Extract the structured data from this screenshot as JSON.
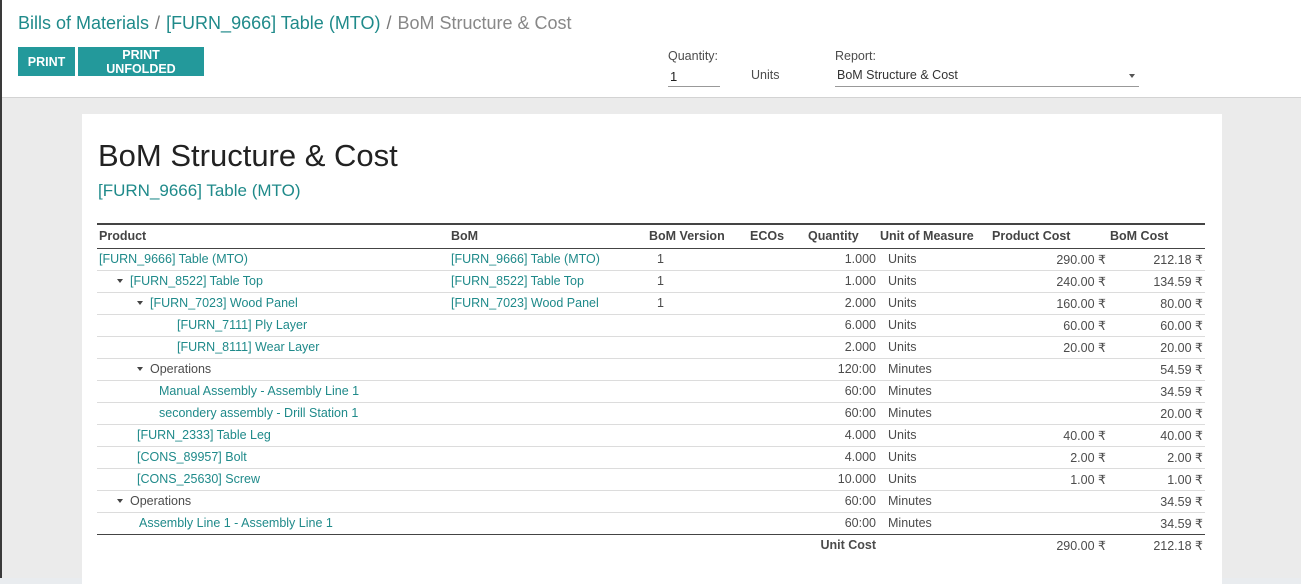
{
  "breadcrumb": {
    "items": [
      "Bills of Materials",
      "[FURN_9666] Table (MTO)"
    ],
    "separator": "/",
    "active": "BoM Structure & Cost"
  },
  "buttons": {
    "print": "PRINT",
    "print_unfolded": "PRINT UNFOLDED"
  },
  "quantity": {
    "label": "Quantity:",
    "value": "1",
    "unit": "Units"
  },
  "report": {
    "label": "Report:",
    "selected": "BoM Structure & Cost"
  },
  "sheet": {
    "title": "BoM Structure & Cost",
    "subtitle": "[FURN_9666] Table (MTO)"
  },
  "table": {
    "columns": [
      "Product",
      "BoM",
      "BoM Version",
      "ECOs",
      "Quantity",
      "Unit of Measure",
      "Product Cost",
      "BoM Cost"
    ],
    "rows": [
      {
        "product": "[FURN_9666] Table (MTO)",
        "bom": "[FURN_9666] Table (MTO)",
        "version": "1",
        "ecos": "",
        "qty": "1.000",
        "uom": "Units",
        "product_cost": "290.00 ₹",
        "bom_cost": "212.18 ₹",
        "level": 0,
        "toggle": false,
        "link": true
      },
      {
        "product": "[FURN_8522] Table Top",
        "bom": "[FURN_8522] Table Top",
        "version": "1",
        "ecos": "",
        "qty": "1.000",
        "uom": "Units",
        "product_cost": "240.00 ₹",
        "bom_cost": "134.59 ₹",
        "level": 1,
        "toggle": true,
        "link": true
      },
      {
        "product": "[FURN_7023] Wood Panel",
        "bom": "[FURN_7023] Wood Panel",
        "version": "1",
        "ecos": "",
        "qty": "2.000",
        "uom": "Units",
        "product_cost": "160.00 ₹",
        "bom_cost": "80.00 ₹",
        "level": 2,
        "toggle": true,
        "link": true
      },
      {
        "product": "[FURN_7111] Ply Layer",
        "bom": "",
        "version": "",
        "ecos": "",
        "qty": "6.000",
        "uom": "Units",
        "product_cost": "60.00 ₹",
        "bom_cost": "60.00 ₹",
        "level": 3,
        "toggle": false,
        "link": true
      },
      {
        "product": "[FURN_8111] Wear Layer",
        "bom": "",
        "version": "",
        "ecos": "",
        "qty": "2.000",
        "uom": "Units",
        "product_cost": "20.00 ₹",
        "bom_cost": "20.00 ₹",
        "level": 3,
        "toggle": false,
        "link": true
      },
      {
        "product": "Operations",
        "bom": "",
        "version": "",
        "ecos": "",
        "qty": "120:00",
        "uom": "Minutes",
        "product_cost": "",
        "bom_cost": "54.59 ₹",
        "level": 2,
        "toggle": true,
        "link": false
      },
      {
        "product": "Manual Assembly - Assembly Line 1",
        "bom": "",
        "version": "",
        "ecos": "",
        "qty": "60:00",
        "uom": "Minutes",
        "product_cost": "",
        "bom_cost": "34.59 ₹",
        "level": 2.5,
        "toggle": false,
        "link": true
      },
      {
        "product": "secondery assembly - Drill Station 1",
        "bom": "",
        "version": "",
        "ecos": "",
        "qty": "60:00",
        "uom": "Minutes",
        "product_cost": "",
        "bom_cost": "20.00 ₹",
        "level": 2.5,
        "toggle": false,
        "link": true
      },
      {
        "product": "[FURN_2333] Table Leg",
        "bom": "",
        "version": "",
        "ecos": "",
        "qty": "4.000",
        "uom": "Units",
        "product_cost": "40.00 ₹",
        "bom_cost": "40.00 ₹",
        "level": 1.5,
        "toggle": false,
        "link": true
      },
      {
        "product": "[CONS_89957] Bolt",
        "bom": "",
        "version": "",
        "ecos": "",
        "qty": "4.000",
        "uom": "Units",
        "product_cost": "2.00 ₹",
        "bom_cost": "2.00 ₹",
        "level": 1.5,
        "toggle": false,
        "link": true
      },
      {
        "product": "[CONS_25630] Screw",
        "bom": "",
        "version": "",
        "ecos": "",
        "qty": "10.000",
        "uom": "Units",
        "product_cost": "1.00 ₹",
        "bom_cost": "1.00 ₹",
        "level": 1.5,
        "toggle": false,
        "link": true
      },
      {
        "product": "Operations",
        "bom": "",
        "version": "",
        "ecos": "",
        "qty": "60:00",
        "uom": "Minutes",
        "product_cost": "",
        "bom_cost": "34.59 ₹",
        "level": 1,
        "toggle": true,
        "link": false
      },
      {
        "product": "Assembly Line 1 - Assembly Line 1",
        "bom": "",
        "version": "",
        "ecos": "",
        "qty": "60:00",
        "uom": "Minutes",
        "product_cost": "",
        "bom_cost": "34.59 ₹",
        "level": 1.6,
        "toggle": false,
        "link": true
      }
    ],
    "total": {
      "label": "Unit Cost",
      "product_cost": "290.00 ₹",
      "bom_cost": "212.18 ₹"
    }
  }
}
